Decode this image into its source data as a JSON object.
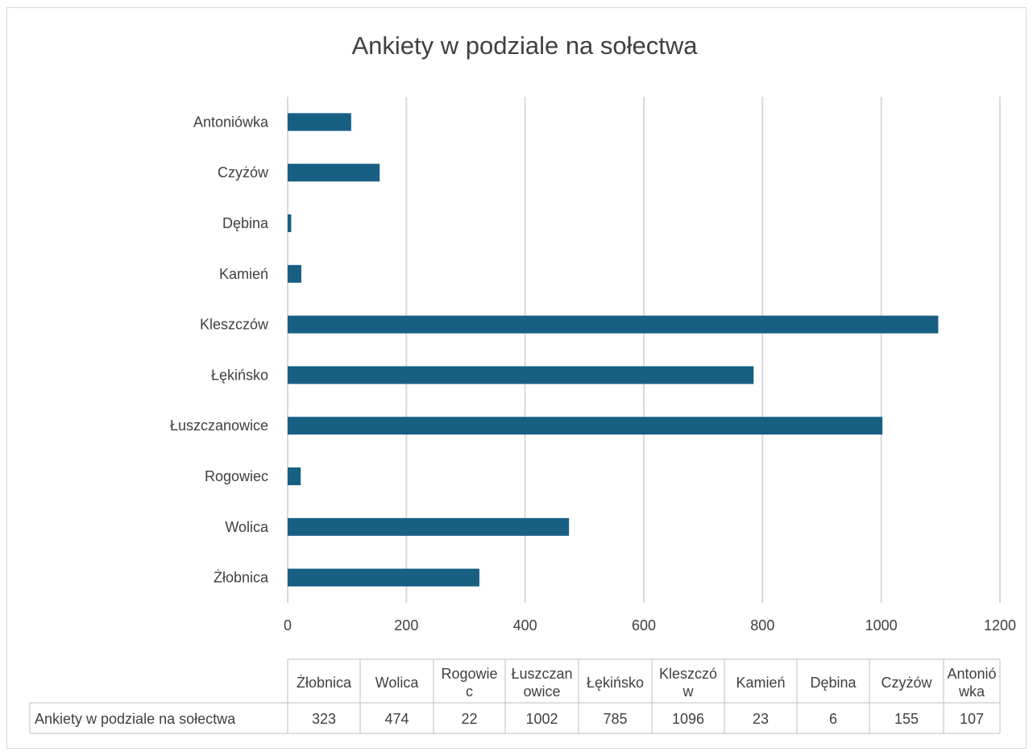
{
  "chart_data": {
    "type": "bar",
    "orientation": "horizontal",
    "title": "Ankiety w podziale na sołectwa",
    "categories": [
      "Żłobnica",
      "Wolica",
      "Rogowiec",
      "Łuszczanowice",
      "Łękińsko",
      "Kleszczów",
      "Kamień",
      "Dębina",
      "Czyżów",
      "Antoniówka"
    ],
    "series": [
      {
        "name": "Ankiety w podziale na sołectwa",
        "values": [
          323,
          474,
          22,
          1002,
          785,
          1096,
          23,
          6,
          155,
          107
        ]
      }
    ],
    "xlim": [
      0,
      1200
    ],
    "x_ticks": [
      "0",
      "200",
      "400",
      "600",
      "800",
      "1000",
      "1200"
    ],
    "grid": "vertical",
    "bar_color": "#185f84",
    "data_table": {
      "headers": [
        "Żłobnica",
        "Wolica",
        "Rogowie c",
        "Łuszczan owice",
        "Łękińsko",
        "Kleszczó w",
        "Kamień",
        "Dębina",
        "Czyżów",
        "Antonió wka"
      ],
      "row_label": "Ankiety w podziale na sołectwa",
      "values": [
        "323",
        "474",
        "22",
        "1002",
        "785",
        "1096",
        "23",
        "6",
        "155",
        "107"
      ]
    }
  }
}
